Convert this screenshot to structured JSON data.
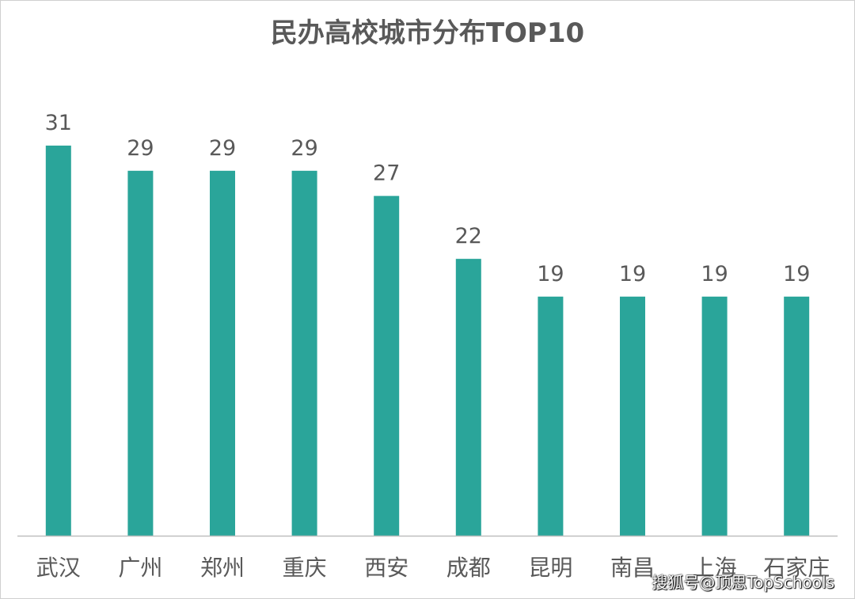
{
  "chart_data": {
    "type": "bar",
    "title": "民办高校城市分布TOP10",
    "categories": [
      "武汉",
      "广州",
      "郑州",
      "重庆",
      "西安",
      "成都",
      "昆明",
      "南昌",
      "上海",
      "石家庄"
    ],
    "values": [
      31,
      29,
      29,
      29,
      27,
      22,
      19,
      19,
      19,
      19
    ],
    "ylim": [
      0,
      31
    ],
    "grid": false,
    "legend": "none",
    "bar_color": "#2aa59a",
    "axis_color": "#bfbfbf",
    "label_color": "#595959"
  },
  "watermark": "搜狐号@顶思TopSchools"
}
